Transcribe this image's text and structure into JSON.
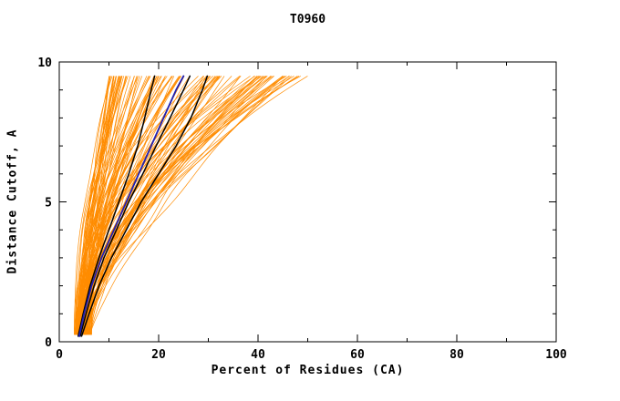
{
  "figure": {
    "title": "T0960"
  },
  "chart_data": {
    "type": "line",
    "title": "T0960",
    "xlabel": "Percent of Residues (CA)",
    "ylabel": "Distance Cutoff, A",
    "xlim": [
      0,
      100
    ],
    "ylim": [
      0,
      10
    ],
    "x_major_ticks": [
      0,
      20,
      40,
      60,
      80,
      100
    ],
    "x_minor_step": 10,
    "y_major_ticks": [
      0,
      5,
      10
    ],
    "y_minor_step": 1,
    "grid": false,
    "legend": "none",
    "background": "#ffffff",
    "axis_color": "#000000",
    "ensemble": {
      "name": "predicted-models-ensemble",
      "color": "#ff8c00",
      "count": 120,
      "seed": 1337,
      "y_start": 0.25,
      "y_end": 9.5,
      "x_start_range": [
        3,
        6.5
      ],
      "x_end_base": 10,
      "x_end_spread": 40,
      "x_end_skew": 1.6,
      "exponent_range": [
        1.25,
        2.3
      ],
      "wiggle": 0.9,
      "stroke_width": 0.7
    },
    "highlight_series": [
      {
        "name": "reference-model-1",
        "color": "#000000",
        "stroke_width": 1.5,
        "points": [
          [
            3.8,
            0.2
          ],
          [
            4.8,
            1
          ],
          [
            6.2,
            2
          ],
          [
            8.0,
            3
          ],
          [
            10.0,
            4
          ],
          [
            12.0,
            5
          ],
          [
            14.0,
            6
          ],
          [
            15.8,
            7
          ],
          [
            17.2,
            8
          ],
          [
            18.5,
            9
          ],
          [
            19.2,
            9.5
          ]
        ]
      },
      {
        "name": "reference-model-2",
        "color": "#000000",
        "stroke_width": 1.5,
        "points": [
          [
            4.2,
            0.2
          ],
          [
            5.4,
            1
          ],
          [
            7.0,
            2
          ],
          [
            9.0,
            3
          ],
          [
            11.5,
            4
          ],
          [
            14.0,
            5
          ],
          [
            16.8,
            6
          ],
          [
            19.5,
            7
          ],
          [
            22.3,
            8
          ],
          [
            25.0,
            9
          ],
          [
            26.3,
            9.5
          ]
        ]
      },
      {
        "name": "reference-model-3",
        "color": "#000000",
        "stroke_width": 1.5,
        "points": [
          [
            4.5,
            0.2
          ],
          [
            6.0,
            1
          ],
          [
            8.0,
            2
          ],
          [
            10.5,
            3
          ],
          [
            13.5,
            4
          ],
          [
            16.5,
            5
          ],
          [
            20.0,
            6
          ],
          [
            23.5,
            7
          ],
          [
            26.5,
            8
          ],
          [
            28.8,
            9
          ],
          [
            29.8,
            9.5
          ]
        ]
      },
      {
        "name": "selected-model-blue",
        "color": "#2020b0",
        "stroke_width": 1.8,
        "points": [
          [
            4.0,
            0.2
          ],
          [
            5.0,
            1
          ],
          [
            6.5,
            2
          ],
          [
            8.5,
            3
          ],
          [
            11.0,
            4
          ],
          [
            13.5,
            5
          ],
          [
            16.0,
            6
          ],
          [
            18.5,
            7
          ],
          [
            21.0,
            8
          ],
          [
            23.5,
            9
          ],
          [
            25.0,
            9.5
          ]
        ]
      }
    ]
  }
}
